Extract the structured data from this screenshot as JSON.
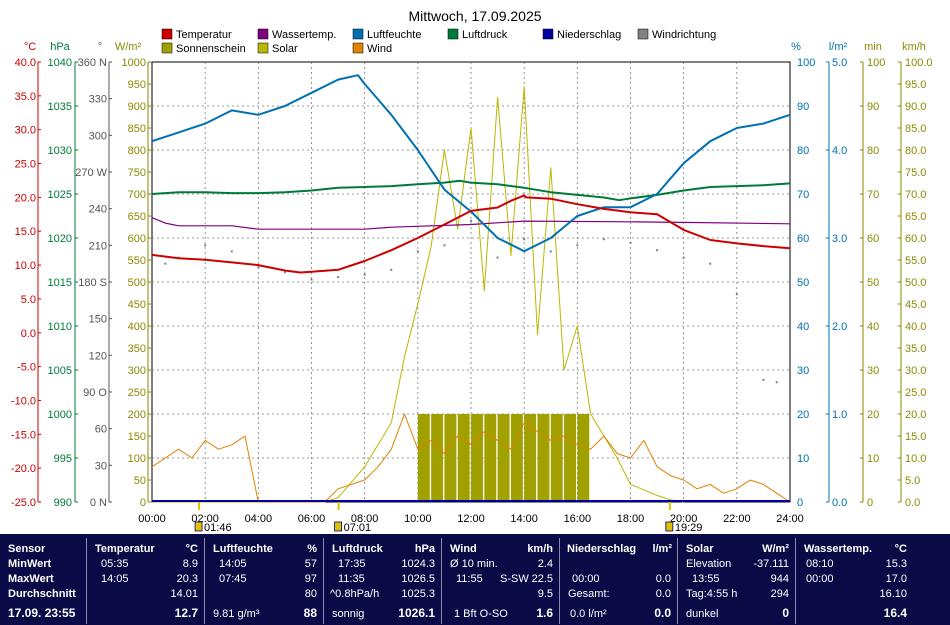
{
  "title": "Mittwoch, 17.09.2025",
  "colors": {
    "temperatur": "#cc0000",
    "wassertemp": "#800080",
    "luftfeuchte": "#0070b0",
    "luftdruck": "#007a3a",
    "niederschlag": "#0000a0",
    "windrichtung": "#808080",
    "sonnenschein": "#a0a000",
    "solar": "#b8b800",
    "wind": "#e08000"
  },
  "chart_data": {
    "type": "line",
    "title": "Mittwoch, 17.09.2025",
    "x_ticks": [
      "00:00",
      "02:00",
      "04:00",
      "06:00",
      "08:00",
      "10:00",
      "12:00",
      "14:00",
      "16:00",
      "18:00",
      "20:00",
      "22:00",
      "24:00"
    ],
    "legend": [
      {
        "name": "Temperatur",
        "color": "#cc0000"
      },
      {
        "name": "Wassertemp.",
        "color": "#800080"
      },
      {
        "name": "Luftfeuchte",
        "color": "#0070b0"
      },
      {
        "name": "Luftdruck",
        "color": "#007a3a"
      },
      {
        "name": "Niederschlag",
        "color": "#0000a0"
      },
      {
        "name": "Windrichtung",
        "color": "#808080"
      },
      {
        "name": "Sonnenschein",
        "color": "#a0a000"
      },
      {
        "name": "Solar",
        "color": "#b8b800"
      },
      {
        "name": "Wind",
        "color": "#e08000"
      }
    ],
    "axes": {
      "temp": {
        "unit": "°C",
        "min": -25,
        "max": 40,
        "ticks": [
          "40.0",
          "35.0",
          "30.0",
          "25.0",
          "20.0",
          "15.0",
          "10.0",
          "5.0",
          "0.0",
          "-5.0",
          "-10.0",
          "-15.0",
          "-20.0",
          "-25.0"
        ]
      },
      "pressure": {
        "unit": "hPa",
        "min": 990,
        "max": 1040,
        "ticks": [
          "1040",
          "1035",
          "1030",
          "1025",
          "1020",
          "1015",
          "1010",
          "1005",
          "1000",
          "995",
          "990"
        ]
      },
      "direction": {
        "unit": "°",
        "min": 0,
        "max": 360,
        "ticks": [
          "360 N",
          "330",
          "300",
          "270 W",
          "240",
          "210",
          "180 S",
          "150",
          "120",
          "90 O",
          "60",
          "30",
          "0 N"
        ]
      },
      "solar": {
        "unit": "W/m²",
        "min": 0,
        "max": 1000,
        "ticks": [
          "1000",
          "950",
          "900",
          "850",
          "800",
          "750",
          "700",
          "650",
          "600",
          "550",
          "500",
          "450",
          "400",
          "350",
          "300",
          "250",
          "200",
          "150",
          "100",
          "50",
          "0"
        ]
      },
      "humidity": {
        "unit": "%",
        "min": 0,
        "max": 100,
        "ticks": [
          "100",
          "90",
          "80",
          "70",
          "60",
          "50",
          "40",
          "30",
          "20",
          "10",
          "0"
        ]
      },
      "rain": {
        "unit": "l/m²",
        "min": 0,
        "max": 5,
        "ticks": [
          "5.0",
          "4.0",
          "3.0",
          "2.0",
          "1.0",
          "0.0"
        ]
      },
      "sun_minutes": {
        "unit": "min",
        "min": 0,
        "max": 100,
        "ticks": [
          "100",
          "90",
          "80",
          "70",
          "60",
          "50",
          "40",
          "30",
          "20",
          "10",
          "0"
        ]
      },
      "wind_speed": {
        "unit": "km/h",
        "min": 0,
        "max": 100,
        "ticks": [
          "100.0",
          "95.0",
          "90.0",
          "85.0",
          "80.0",
          "75.0",
          "70.0",
          "65.0",
          "60.0",
          "55.0",
          "50.0",
          "45.0",
          "40.0",
          "35.0",
          "30.0",
          "25.0",
          "20.0",
          "15.0",
          "10.0",
          "5.0",
          "0.0"
        ]
      }
    },
    "series": [
      {
        "name": "Temperatur",
        "x": [
          0,
          1,
          2,
          3,
          4,
          5,
          5.58,
          6,
          7,
          8,
          9,
          10,
          11,
          12,
          13,
          13.5,
          14,
          14.08,
          15,
          16,
          17,
          18,
          19,
          20,
          21,
          22,
          23,
          24
        ],
        "values": [
          11.5,
          11,
          10.8,
          10.4,
          10,
          9.2,
          8.9,
          9,
          9.3,
          10.6,
          12.2,
          14,
          16,
          18,
          18.5,
          19.5,
          20.3,
          20,
          19.8,
          19,
          18.3,
          17.8,
          17.5,
          15.2,
          13.7,
          13.2,
          12.8,
          12.5
        ]
      },
      {
        "name": "Wassertemp.",
        "x": [
          0,
          0.5,
          1,
          3,
          4,
          8,
          9,
          12,
          14,
          18,
          20,
          24
        ],
        "values": [
          17,
          16.2,
          15.8,
          15.8,
          15.3,
          15.3,
          15.6,
          16,
          16.5,
          16.4,
          16.3,
          16.1
        ]
      },
      {
        "name": "Luftfeuchte",
        "x": [
          0,
          1,
          2,
          3,
          4,
          5,
          6,
          7,
          7.75,
          8,
          9,
          10,
          11,
          12,
          13,
          14,
          15,
          16,
          17,
          18,
          19,
          20,
          21,
          22,
          23,
          24
        ],
        "values": [
          82,
          84,
          86,
          89,
          88,
          90,
          93,
          96,
          97,
          95,
          88,
          80,
          71,
          66,
          60,
          57,
          60,
          65,
          67,
          67,
          70,
          77,
          82,
          85,
          86,
          88
        ]
      },
      {
        "name": "Luftdruck",
        "x": [
          0,
          1,
          2,
          3,
          4,
          5,
          6,
          7,
          8,
          9,
          10,
          11,
          11.58,
          12,
          13,
          14,
          15,
          16,
          17,
          17.58,
          18,
          19,
          20,
          21,
          22,
          23,
          24
        ],
        "values": [
          1025,
          1025.2,
          1025.2,
          1025.1,
          1025.1,
          1025.2,
          1025.4,
          1025.7,
          1025.8,
          1025.9,
          1026.1,
          1026.3,
          1026.5,
          1026.3,
          1026.1,
          1025.7,
          1025.2,
          1024.9,
          1024.6,
          1024.3,
          1024.5,
          1024.9,
          1025.4,
          1025.8,
          1025.9,
          1026.0,
          1026.2
        ]
      },
      {
        "name": "Solar",
        "x": [
          0,
          6.5,
          7,
          8,
          9,
          9.5,
          10,
          10.5,
          11,
          11.5,
          12,
          12.5,
          13,
          13.5,
          14,
          14.5,
          15,
          15.5,
          16,
          16.5,
          17,
          17.5,
          18,
          19,
          19.5,
          20
        ],
        "values": [
          0,
          0,
          10,
          80,
          180,
          330,
          450,
          580,
          800,
          620,
          850,
          480,
          920,
          560,
          944,
          380,
          760,
          300,
          400,
          200,
          150,
          100,
          40,
          15,
          5,
          0
        ]
      },
      {
        "name": "Wind",
        "x": [
          0,
          0.5,
          1,
          1.5,
          2,
          2.5,
          3,
          3.5,
          4,
          6.5,
          7,
          8,
          8.5,
          9,
          9.5,
          10,
          10.5,
          11,
          11.5,
          12,
          12.5,
          13,
          13.5,
          14,
          14.5,
          15,
          15.5,
          16,
          16.5,
          17,
          17.5,
          18,
          18.5,
          19,
          19.5,
          20,
          20.5,
          21,
          21.5,
          22,
          22.5,
          23,
          23.5,
          24
        ],
        "values": [
          8,
          10,
          12,
          10,
          14,
          12,
          13,
          15,
          0,
          0,
          3,
          5,
          8,
          12,
          20,
          12,
          14,
          11,
          15,
          13,
          16,
          14,
          12,
          18,
          16,
          14,
          15,
          13,
          12,
          15,
          11,
          10,
          14,
          8,
          6,
          5,
          3,
          4,
          2,
          3,
          5,
          4,
          2,
          0
        ]
      },
      {
        "name": "Windrichtung",
        "x": [
          0.5,
          1,
          2,
          3,
          4,
          5,
          6,
          7,
          8,
          9,
          10,
          11,
          12,
          13,
          14,
          15,
          16,
          17,
          18,
          19,
          20,
          21,
          22,
          23,
          23.5
        ],
        "values": [
          195,
          200,
          210,
          205,
          192,
          188,
          182,
          184,
          186,
          190,
          205,
          210,
          230,
          200,
          215,
          205,
          210,
          215,
          212,
          206,
          200,
          195,
          170,
          100,
          98
        ]
      },
      {
        "name": "Sonnenschein",
        "x": [
          10,
          10.5,
          11,
          11.5,
          12,
          12.5,
          13,
          13.5,
          14,
          14.5,
          15,
          15.5,
          16
        ],
        "values": [
          20,
          20,
          20,
          20,
          20,
          20,
          20,
          20,
          20,
          20,
          20,
          20,
          20
        ]
      }
    ],
    "events": [
      {
        "time": "01:46",
        "x": 1.77
      },
      {
        "time": "07:01",
        "x": 7.02
      },
      {
        "time": "19:29",
        "x": 19.48
      }
    ]
  },
  "table": {
    "row_labels": {
      "sensor": "Sensor",
      "min": "MinWert",
      "max": "MaxWert",
      "avg": "Durchschnitt",
      "cur": "17.09. 23:55"
    },
    "temperatur": {
      "title": "Temperatur",
      "unit": "°C",
      "min_time": "05:35",
      "min_val": "8.9",
      "max_time": "14:05",
      "max_val": "20.3",
      "avg": "14.01",
      "cur": "12.7"
    },
    "luftfeuchte": {
      "title": "Luftfeuchte",
      "unit": "%",
      "min_time": "14:05",
      "min_val": "57",
      "max_time": "07:45",
      "max_val": "97",
      "avg": "80",
      "cur_extra": "9.81 g/m³",
      "cur": "88"
    },
    "luftdruck": {
      "title": "Luftdruck",
      "unit": "hPa",
      "min_time": "17:35",
      "min_val": "1024.3",
      "max_time": "11:35",
      "max_val": "1026.5",
      "avg_extra": "^0.8hPa/h",
      "avg": "1025.3",
      "cur_extra": "sonnig",
      "cur": "1026.1"
    },
    "wind": {
      "title": "Wind",
      "unit": "km/h",
      "min_label": "Ø 10 min.",
      "min_val": "2.4",
      "max_time": "11:55",
      "max_dir": "S-SW",
      "max_val": "22.5",
      "avg": "9.5",
      "cur_extra": "1 Bft O-SO",
      "cur": "1.6"
    },
    "niederschlag": {
      "title": "Niederschlag",
      "unit": "l/m²",
      "max_time": "00:00",
      "max_val": "0.0",
      "avg_label": "Gesamt:",
      "avg": "0.0",
      "cur_extra": "0.0 l/m²",
      "cur": "0.0"
    },
    "solar": {
      "title": "Solar",
      "unit": "W/m²",
      "min_label": "Elevation",
      "min_val": "-37.111",
      "max_time": "13:55",
      "max_val": "944",
      "avg_label": "Tag:4:55 h",
      "avg": "294",
      "cur_extra": "dunkel",
      "cur": "0"
    },
    "wassertemp": {
      "title": "Wassertemp.",
      "unit": "°C",
      "min_time": "08:10",
      "min_val": "15.3",
      "max_time": "00:00",
      "max_val": "17.0",
      "avg": "16.10",
      "cur": "16.4"
    }
  }
}
